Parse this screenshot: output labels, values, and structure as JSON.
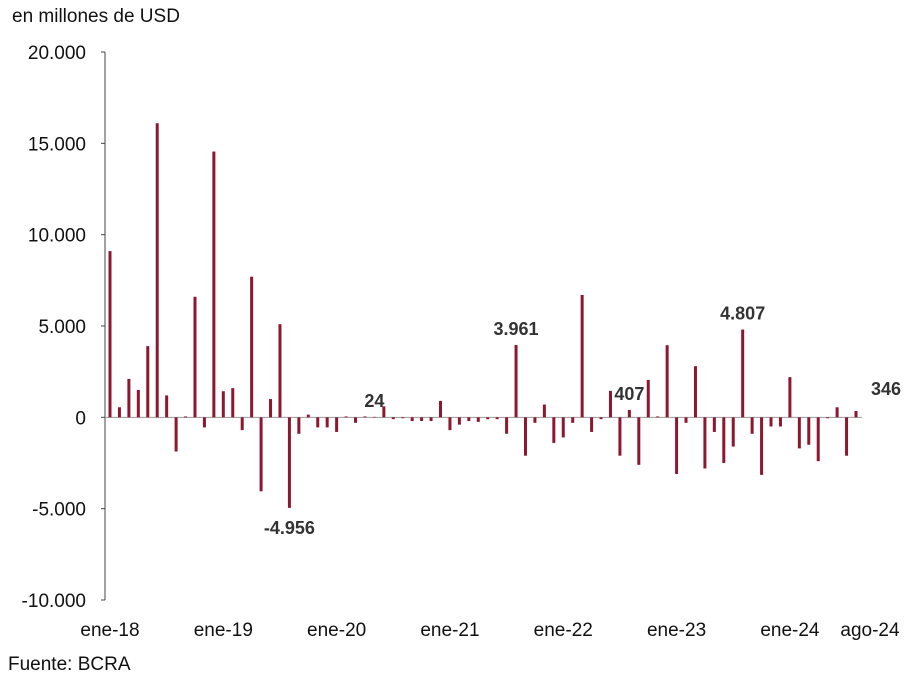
{
  "chart_data": {
    "type": "bar",
    "y_axis_label": "en millones de USD",
    "source": "Fuente: BCRA",
    "color": "#8e1730",
    "ylim": [
      -10000,
      20000
    ],
    "yticks": [
      {
        "value": -10000,
        "label": "-10.000"
      },
      {
        "value": -5000,
        "label": "-5.000"
      },
      0,
      {
        "value": 5000,
        "label": "5.000"
      },
      {
        "value": 10000,
        "label": "10.000"
      },
      {
        "value": 15000,
        "label": "15.000"
      },
      {
        "value": 20000,
        "label": "20.000"
      }
    ],
    "categories": [
      "ene-18",
      null,
      null,
      null,
      null,
      null,
      null,
      null,
      null,
      null,
      null,
      null,
      "ene-19",
      null,
      null,
      null,
      null,
      null,
      null,
      null,
      null,
      null,
      null,
      null,
      "ene-20",
      null,
      null,
      null,
      null,
      null,
      null,
      null,
      null,
      null,
      null,
      null,
      "ene-21",
      null,
      null,
      null,
      null,
      null,
      null,
      null,
      null,
      null,
      null,
      null,
      "ene-22",
      null,
      null,
      null,
      null,
      null,
      null,
      null,
      null,
      null,
      null,
      null,
      "ene-23",
      null,
      null,
      null,
      null,
      null,
      null,
      null,
      null,
      null,
      null,
      null,
      "ene-24",
      null,
      null,
      null,
      null,
      null,
      null,
      "ago-24"
    ],
    "values": [
      9100,
      550,
      2100,
      1500,
      3900,
      16100,
      1200,
      -1870,
      50,
      6600,
      -550,
      14550,
      1430,
      1600,
      -700,
      7700,
      -4050,
      1000,
      5100,
      -4956,
      -900,
      150,
      -550,
      -550,
      -800,
      50,
      -300,
      50,
      24,
      600,
      -100,
      -50,
      -200,
      -200,
      -200,
      900,
      -700,
      -400,
      -200,
      -250,
      -100,
      -100,
      -900,
      3961,
      -2100,
      -300,
      700,
      -1400,
      -1100,
      -300,
      6700,
      -800,
      -100,
      1450,
      -2100,
      407,
      -2600,
      2050,
      50,
      3950,
      -3100,
      -300,
      2800,
      -2800,
      -800,
      -2500,
      -1600,
      4807,
      -900,
      -3150,
      -500,
      -500,
      2200,
      -1700,
      -1500,
      -2400,
      -50,
      550,
      -2100,
      346
    ],
    "value_labels": [
      null,
      null,
      null,
      null,
      null,
      null,
      null,
      null,
      null,
      null,
      null,
      null,
      null,
      null,
      null,
      null,
      null,
      null,
      null,
      "-4.956",
      null,
      null,
      null,
      null,
      null,
      null,
      null,
      null,
      "24",
      null,
      null,
      null,
      null,
      null,
      null,
      null,
      null,
      null,
      null,
      null,
      null,
      null,
      null,
      "3.961",
      null,
      null,
      null,
      null,
      null,
      null,
      null,
      null,
      null,
      null,
      null,
      "407",
      null,
      null,
      null,
      null,
      null,
      null,
      null,
      null,
      null,
      null,
      null,
      "4.807",
      null,
      null,
      null,
      null,
      null,
      null,
      null,
      null,
      null,
      null,
      null,
      "346"
    ]
  }
}
